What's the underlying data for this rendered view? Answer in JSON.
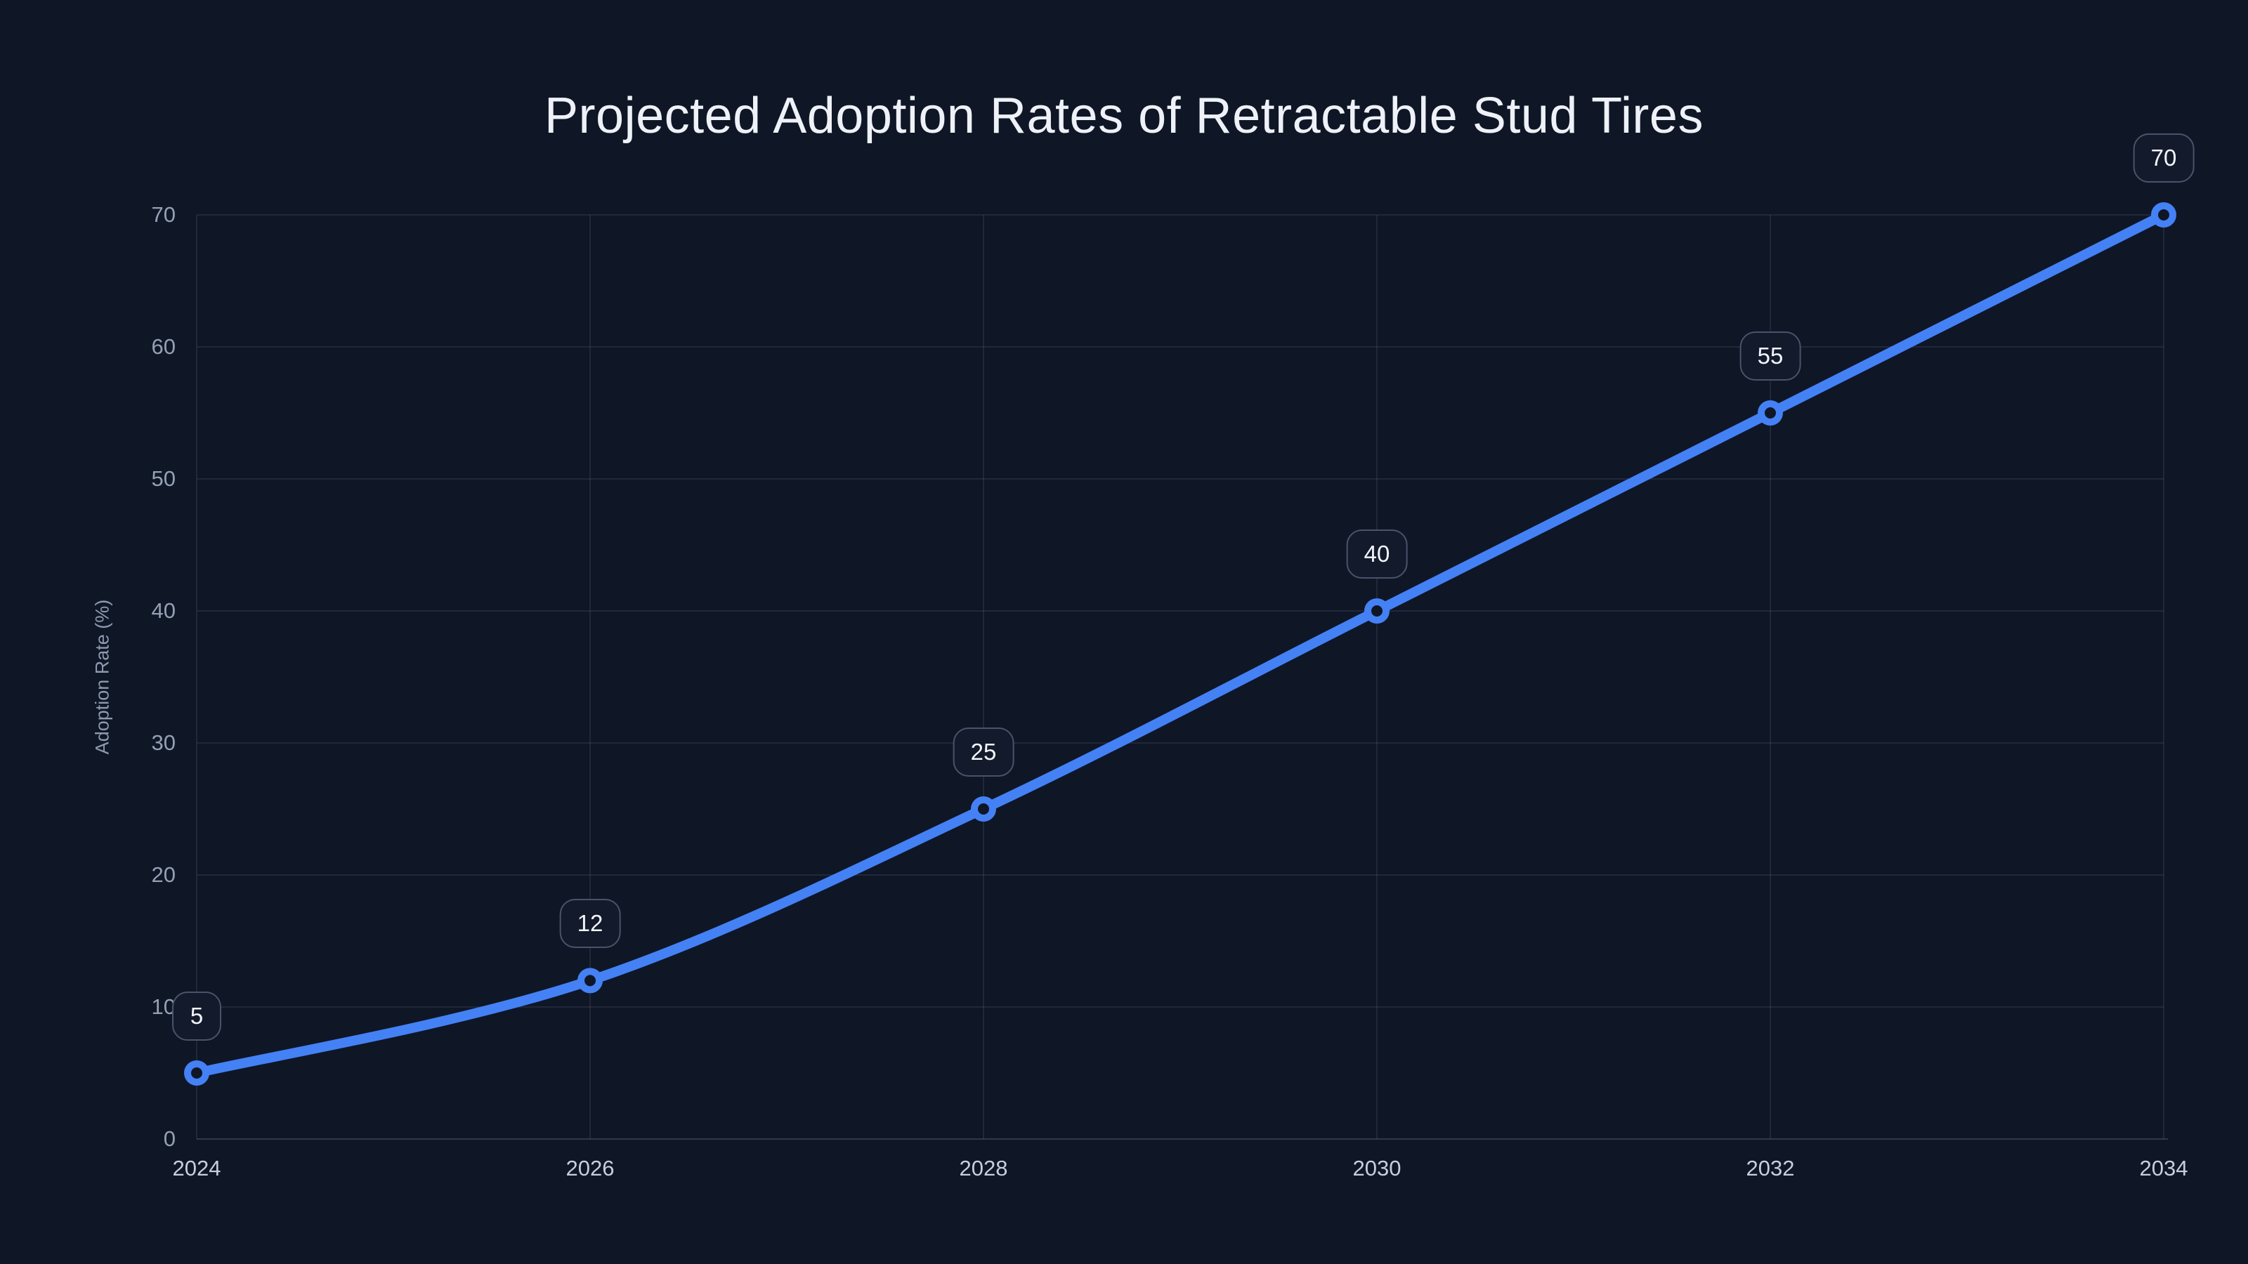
{
  "chart_data": {
    "type": "line",
    "title": "Projected Adoption Rates of Retractable Stud Tires",
    "ylabel": "Adoption Rate (%)",
    "xlabel": "",
    "series": [
      {
        "name": "Adoption Rate",
        "x": [
          2024,
          2026,
          2028,
          2030,
          2032,
          2034
        ],
        "values": [
          5,
          12,
          25,
          40,
          55,
          70
        ],
        "point_labels": [
          "5",
          "12",
          "25",
          "40",
          "55",
          "70"
        ]
      }
    ],
    "xticks": [
      "2024",
      "2026",
      "2028",
      "2030",
      "2032",
      "2034"
    ],
    "yticks": [
      "0",
      "10",
      "20",
      "30",
      "40",
      "50",
      "60",
      "70"
    ],
    "xlim": [
      2024,
      2034
    ],
    "ylim": [
      0,
      70
    ],
    "grid": true,
    "legend_position": "none",
    "line_style": "smooth",
    "marker_style": "open-circle",
    "colors": {
      "background": "#0f1626",
      "line": "#4481f5",
      "marker_fill": "#0f1626",
      "grid": "rgba(148,163,184,0.13)",
      "axis_line": "rgba(148,163,184,0.25)",
      "title_text": "#eef2f8",
      "x_tick_text": "#c6cfdd",
      "y_tick_text": "#94a0b4",
      "axis_label_text": "#8d99ae",
      "badge_background": "#121a2b",
      "badge_border": "#49536a",
      "badge_text": "#f2f5fa"
    }
  }
}
